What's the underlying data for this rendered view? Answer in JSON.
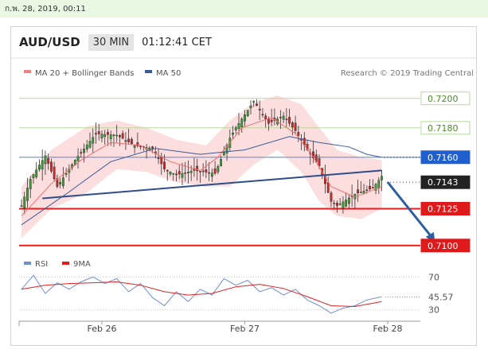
{
  "topbar": {
    "datetime": "ก.พ. 28, 2019, 00:11"
  },
  "header": {
    "pair": "AUD/USD",
    "timeframe": "30 MIN",
    "clock": "01:12:41 CET"
  },
  "legend": {
    "items": [
      {
        "label": "MA 20 + Bollinger Bands",
        "color": "#f08080"
      },
      {
        "label": "MA 50",
        "color": "#3a5a9a"
      }
    ],
    "credit": "Research © 2019 Trading Central"
  },
  "rsi_legend": {
    "items": [
      {
        "label": "RSI",
        "color": "#6f8fcf"
      },
      {
        "label": "9MA",
        "color": "#e02020"
      }
    ]
  },
  "chart_data": {
    "type": "line",
    "title": "",
    "price_ylim": [
      0.7091,
      0.7211
    ],
    "x_ticks": [
      {
        "label": "Feb 26",
        "t": 27
      },
      {
        "label": "Feb 27",
        "t": 75
      },
      {
        "label": "Feb 28",
        "t": 123
      }
    ],
    "levels": [
      {
        "value": 0.72,
        "label": "0.7200",
        "style": "green"
      },
      {
        "value": 0.718,
        "label": "0.7180",
        "style": "green"
      },
      {
        "value": 0.716,
        "label": "0.7160",
        "style": "blue"
      },
      {
        "value": 0.7143,
        "label": "0.7143",
        "style": "current"
      },
      {
        "value": 0.7125,
        "label": "0.7125",
        "style": "red"
      },
      {
        "value": 0.71,
        "label": "0.7100",
        "style": "red"
      }
    ],
    "trendline": {
      "t": [
        7,
        121
      ],
      "price": [
        0.7132,
        0.7151
      ]
    },
    "forecast_arrow": {
      "t": [
        123,
        139
      ],
      "price": [
        0.7143,
        0.7101
      ]
    },
    "price_path": {
      "t": [
        0,
        3,
        8,
        12,
        18,
        25,
        32,
        38,
        44,
        48,
        52,
        58,
        65,
        70,
        72,
        78,
        83,
        88,
        92,
        96,
        100,
        104,
        106,
        112,
        118,
        121
      ],
      "price": [
        0.7127,
        0.7145,
        0.7161,
        0.714,
        0.7158,
        0.7176,
        0.7175,
        0.7168,
        0.7166,
        0.7152,
        0.7148,
        0.7151,
        0.7149,
        0.7173,
        0.718,
        0.7198,
        0.7183,
        0.7188,
        0.7178,
        0.7165,
        0.7154,
        0.713,
        0.7127,
        0.7135,
        0.7139,
        0.7147
      ]
    },
    "ma20": {
      "t": [
        0,
        10,
        20,
        30,
        40,
        50,
        60,
        66,
        74,
        84,
        92,
        98,
        104,
        112,
        121
      ],
      "price": [
        0.712,
        0.7142,
        0.7158,
        0.717,
        0.7168,
        0.7157,
        0.7151,
        0.716,
        0.718,
        0.7187,
        0.7176,
        0.716,
        0.714,
        0.7133,
        0.714
      ]
    },
    "ma50": {
      "t": [
        0,
        15,
        30,
        45,
        60,
        75,
        90,
        100,
        110,
        116,
        121
      ],
      "price": [
        0.7114,
        0.7135,
        0.7157,
        0.7166,
        0.7162,
        0.7165,
        0.7174,
        0.717,
        0.7167,
        0.7162,
        0.716
      ]
    },
    "bb_upper": {
      "t": [
        0,
        10,
        22,
        32,
        42,
        52,
        62,
        70,
        78,
        86,
        94,
        100,
        106,
        114,
        121
      ],
      "price": [
        0.714,
        0.7165,
        0.7181,
        0.7185,
        0.718,
        0.7172,
        0.7168,
        0.7185,
        0.7197,
        0.7202,
        0.7196,
        0.718,
        0.7165,
        0.716,
        0.7158
      ]
    },
    "bb_lower": {
      "t": [
        0,
        10,
        22,
        32,
        42,
        52,
        62,
        70,
        78,
        86,
        94,
        100,
        106,
        114,
        121
      ],
      "price": [
        0.7105,
        0.7125,
        0.7136,
        0.7152,
        0.715,
        0.7143,
        0.714,
        0.714,
        0.7155,
        0.7165,
        0.715,
        0.713,
        0.712,
        0.7118,
        0.7125
      ]
    },
    "rsi": {
      "ylim": [
        20,
        80
      ],
      "ticks": [
        70,
        30
      ],
      "current": 45.57,
      "current_label": "45.57",
      "rsi_line": {
        "t": [
          0,
          4,
          8,
          12,
          16,
          20,
          24,
          28,
          32,
          36,
          40,
          44,
          48,
          52,
          56,
          60,
          64,
          68,
          72,
          76,
          80,
          84,
          88,
          92,
          96,
          100,
          104,
          108,
          112,
          116,
          121
        ],
        "value": [
          55,
          72,
          50,
          63,
          55,
          64,
          70,
          62,
          68,
          52,
          62,
          45,
          35,
          52,
          40,
          55,
          48,
          68,
          60,
          66,
          52,
          57,
          48,
          55,
          42,
          35,
          26,
          32,
          35,
          42,
          46
        ]
      },
      "ma_line": {
        "t": [
          0,
          8,
          16,
          24,
          32,
          40,
          48,
          56,
          64,
          72,
          80,
          88,
          96,
          104,
          112,
          121
        ],
        "value": [
          55,
          60,
          62,
          63,
          64,
          60,
          52,
          48,
          50,
          58,
          61,
          56,
          46,
          35,
          34,
          40
        ]
      }
    }
  }
}
